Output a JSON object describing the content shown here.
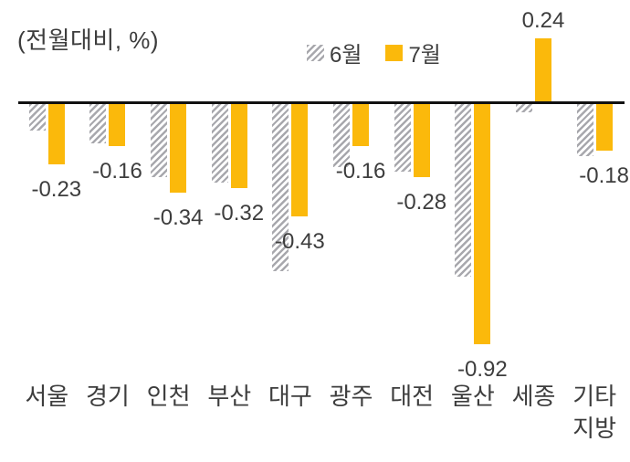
{
  "title": "(전월대비, %)",
  "legend": {
    "items": [
      {
        "label": "6월",
        "swatch": "hatched"
      },
      {
        "label": "7월",
        "swatch": "solid"
      }
    ]
  },
  "colors": {
    "bar_july": "#FBB90B",
    "hatch_stripe": "#A8A8AD",
    "axis_line": "#111111",
    "text": "#3D3D3D"
  },
  "chart_data": {
    "type": "bar",
    "title": "(전월대비, %)",
    "ylabel": "전월대비, %",
    "categories": [
      "서울",
      "경기",
      "인천",
      "부산",
      "대구",
      "광주",
      "대전",
      "울산",
      "세종",
      "기타지방"
    ],
    "series": [
      {
        "name": "6월",
        "style": "hatched-gray",
        "values": [
          -0.1,
          -0.15,
          -0.28,
          -0.3,
          -0.64,
          -0.24,
          -0.26,
          -0.66,
          -0.03,
          -0.2
        ]
      },
      {
        "name": "7월",
        "style": "solid-yellow",
        "values": [
          -0.23,
          -0.16,
          -0.34,
          -0.32,
          -0.43,
          -0.16,
          -0.28,
          -0.92,
          0.24,
          -0.18
        ]
      }
    ],
    "data_labels": {
      "series": "7월",
      "values": [
        "-0.23",
        "-0.16",
        "-0.34",
        "-0.32",
        "-0.43",
        "-0.16",
        "-0.28",
        "-0.92",
        "0.24",
        "-0.18"
      ]
    },
    "ylim": [
      -1.0,
      0.3
    ],
    "baseline": 0,
    "grid": false,
    "legend_position": "top-center"
  }
}
